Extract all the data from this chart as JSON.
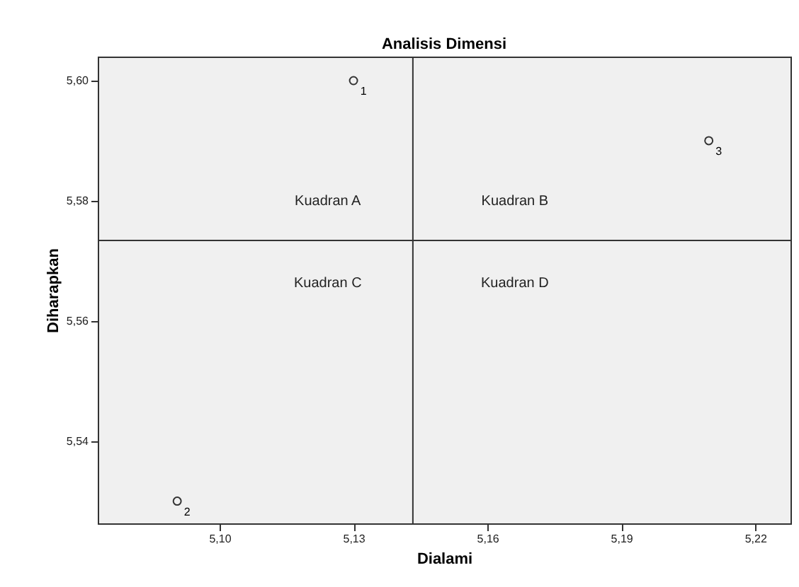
{
  "chart_data": {
    "type": "scatter",
    "title": "Analisis Dimensi",
    "xlabel": "Dialami",
    "ylabel": "Diharapkan",
    "x": [
      5.13,
      5.0905,
      5.2096
    ],
    "series": [
      {
        "color": "#333333",
        "values": [
          5.6,
          5.53,
          5.59
        ]
      }
    ],
    "marker": "circle",
    "xlim": [
      5.0727,
      5.2279
    ],
    "ylim": [
      5.5263,
      5.604
    ],
    "xticks": [
      {
        "value": 5.1,
        "label": "5,10"
      },
      {
        "value": 5.13,
        "label": "5,13"
      },
      {
        "value": 5.16,
        "label": "5,16"
      },
      {
        "value": 5.19,
        "label": "5,19"
      },
      {
        "value": 5.22,
        "label": "5,22"
      }
    ],
    "yticks": [
      {
        "value": 5.54,
        "label": "5,54"
      },
      {
        "value": 5.56,
        "label": "5,56"
      },
      {
        "value": 5.58,
        "label": "5,58"
      },
      {
        "value": 5.6,
        "label": "5,60"
      }
    ],
    "ref_lines": [
      {
        "axis": "x",
        "value": 5.1433,
        "color": "#333333"
      },
      {
        "axis": "y",
        "value": 5.5734,
        "color": "#333333"
      }
    ],
    "annotations": [
      "Kuadran A",
      "Kuadran B",
      "Kuadran C",
      "Kuadran D",
      {
        "text": "1",
        "x": 5.13,
        "y": 5.6
      },
      {
        "text": "2",
        "x": 5.0905,
        "y": 5.53
      },
      {
        "text": "3",
        "x": 5.2096,
        "y": 5.59
      }
    ]
  }
}
